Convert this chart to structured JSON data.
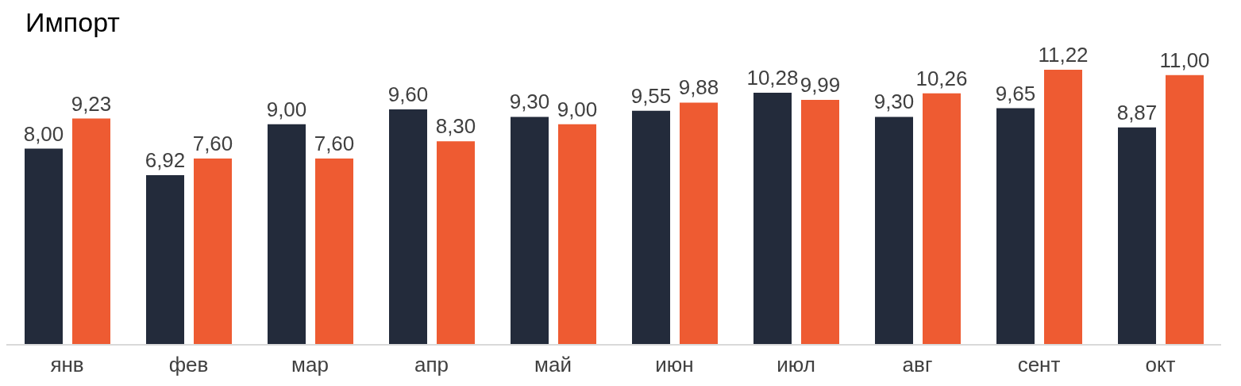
{
  "chart_data": {
    "type": "bar",
    "title": "Импорт",
    "categories": [
      "янв",
      "фев",
      "мар",
      "апр",
      "май",
      "июн",
      "июл",
      "авг",
      "сент",
      "окт"
    ],
    "series": [
      {
        "color": "#232b3b",
        "values": [
          8.0,
          6.92,
          9.0,
          9.6,
          9.3,
          9.55,
          10.28,
          9.3,
          9.65,
          8.87
        ],
        "value_labels": [
          "8,00",
          "6,92",
          "9,00",
          "9,60",
          "9,30",
          "9,55",
          "10,28",
          "9,30",
          "9,65",
          "8,87"
        ]
      },
      {
        "color": "#ee5b32",
        "values": [
          9.23,
          7.6,
          7.6,
          8.3,
          9.0,
          9.88,
          9.99,
          10.26,
          11.22,
          11.0
        ],
        "value_labels": [
          "9,23",
          "7,60",
          "7,60",
          "8,30",
          "9,00",
          "9,88",
          "9,99",
          "10,26",
          "11,22",
          "11,00"
        ]
      }
    ],
    "grid": false,
    "legend": false
  }
}
